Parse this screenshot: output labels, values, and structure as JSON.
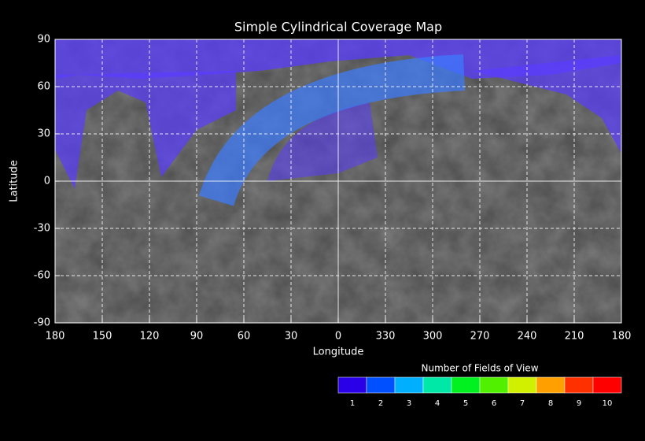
{
  "chart_data": {
    "type": "map",
    "title": "Simple Cylindrical Coverage Map",
    "xlabel": "Longitude",
    "ylabel": "Latitude",
    "xlim": [
      180,
      -180
    ],
    "xticks": [
      180,
      150,
      120,
      90,
      60,
      30,
      0,
      {
        "value": -30,
        "label": "330"
      },
      {
        "value": -60,
        "label": "300"
      },
      {
        "value": -90,
        "label": "270"
      },
      {
        "value": -120,
        "label": "240"
      },
      {
        "value": -150,
        "label": "210"
      },
      {
        "value": -180,
        "label": "180"
      }
    ],
    "ylim": [
      -90,
      90
    ],
    "yticks": [
      -90,
      -60,
      -30,
      0,
      30,
      60,
      90
    ],
    "grid": true,
    "colorbar": {
      "title": "Number of Fields of View",
      "levels": [
        1,
        2,
        3,
        4,
        5,
        6,
        7,
        8,
        9,
        10
      ],
      "colors": [
        "#2a00e8",
        "#0050ff",
        "#00b0ff",
        "#00e8a8",
        "#00f020",
        "#50f000",
        "#d0f000",
        "#ffa000",
        "#ff3000",
        "#ff0000"
      ]
    }
  }
}
